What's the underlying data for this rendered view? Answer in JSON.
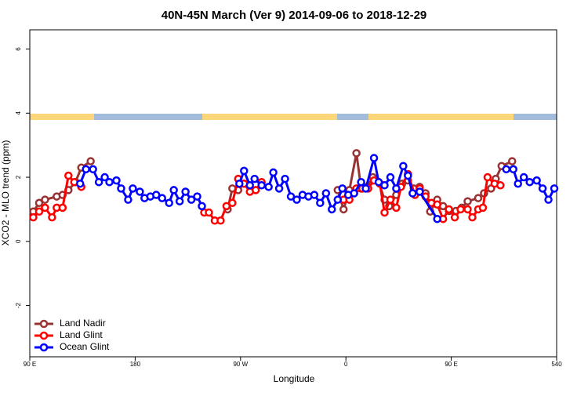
{
  "chart_data": {
    "type": "line",
    "title": "40N-45N March (Ver 9)   2014-09-06 to 2018-12-29",
    "x_label": "Longitude",
    "y_label": "XCO2 - MLO trend (ppm)",
    "xlim": [
      90,
      540
    ],
    "ylim": [
      -3.6,
      6.6
    ],
    "xticks": [
      {
        "value": 90,
        "label": "90 E"
      },
      180,
      {
        "value": 270,
        "label": "90 W"
      },
      {
        "value": 360,
        "label": "0"
      },
      {
        "value": 450,
        "label": "90 E"
      },
      540
    ],
    "yticks": [
      -2,
      0,
      2,
      4,
      6
    ],
    "legend": "bottom-left",
    "series": [
      {
        "name": "Land Nadir",
        "color": "#993333",
        "x": [
          93,
          98,
          103,
          113,
          118,
          123,
          129,
          134,
          142,
          null,
          259,
          263,
          268,
          273,
          null,
          353,
          358,
          363,
          369,
          373,
          378,
          383,
          388,
          393,
          397,
          403,
          408,
          413,
          418,
          423,
          428,
          432,
          438,
          443,
          448,
          454,
          459,
          464,
          473,
          478,
          484,
          488,
          493,
          502
        ],
        "values": [
          0.93,
          1.2,
          1.3,
          1.4,
          1.45,
          1.6,
          1.85,
          2.3,
          2.5,
          null,
          1.0,
          1.65,
          1.6,
          1.8,
          null,
          1.6,
          1.0,
          1.6,
          2.75,
          1.65,
          1.7,
          2.0,
          1.85,
          1.3,
          1.1,
          1.45,
          1.8,
          1.9,
          1.65,
          1.7,
          1.5,
          0.93,
          1.3,
          1.1,
          0.95,
          0.95,
          1.05,
          1.25,
          1.35,
          1.5,
          1.65,
          1.95,
          2.35,
          2.5
        ]
      },
      {
        "name": "Land Glint",
        "color": "#ff0000",
        "x": [
          93,
          98,
          103,
          109,
          113,
          118,
          123,
          128,
          134,
          null,
          239,
          243,
          248,
          253,
          258,
          263,
          268,
          273,
          278,
          283,
          288,
          null,
          358,
          363,
          369,
          374,
          379,
          384,
          389,
          393,
          398,
          403,
          407,
          413,
          419,
          423,
          428,
          433,
          438,
          443,
          448,
          453,
          458,
          464,
          468,
          473,
          477,
          481,
          487,
          492
        ],
        "values": [
          0.75,
          0.93,
          1.05,
          0.75,
          1.05,
          1.05,
          2.05,
          1.85,
          1.7,
          null,
          0.9,
          0.9,
          0.65,
          0.65,
          1.1,
          1.2,
          1.95,
          1.8,
          1.55,
          1.6,
          1.85,
          null,
          1.3,
          1.3,
          1.65,
          1.65,
          1.65,
          1.9,
          1.8,
          0.9,
          1.3,
          1.05,
          1.7,
          2.1,
          1.45,
          1.65,
          1.4,
          1.2,
          1.15,
          0.7,
          1.0,
          0.75,
          1.0,
          1.0,
          0.75,
          1.0,
          1.05,
          2.0,
          1.8,
          1.75
        ]
      },
      {
        "name": "Ocean Glint",
        "color": "#0000ff",
        "x": [
          133,
          138,
          144,
          149,
          154,
          158,
          164,
          168,
          174,
          178,
          184,
          188,
          193,
          198,
          203,
          209,
          213,
          218,
          223,
          228,
          233,
          237,
          null,
          269,
          273,
          278,
          282,
          288,
          294,
          298,
          303,
          308,
          313,
          318,
          323,
          328,
          333,
          338,
          343,
          348,
          353,
          357,
          362,
          367,
          373,
          377,
          384,
          388,
          393,
          398,
          403,
          409,
          413,
          417,
          423,
          438,
          null,
          497,
          503,
          507,
          512,
          517,
          523,
          528,
          533,
          538
        ],
        "values": [
          1.8,
          2.25,
          2.25,
          1.85,
          2.0,
          1.85,
          1.9,
          1.65,
          1.3,
          1.65,
          1.55,
          1.35,
          1.4,
          1.45,
          1.35,
          1.2,
          1.6,
          1.25,
          1.55,
          1.3,
          1.4,
          1.1,
          null,
          1.8,
          2.2,
          1.75,
          1.95,
          1.75,
          1.7,
          2.15,
          1.65,
          1.95,
          1.4,
          1.3,
          1.45,
          1.4,
          1.45,
          1.2,
          1.5,
          1.0,
          1.3,
          1.65,
          1.45,
          1.5,
          1.85,
          1.65,
          2.6,
          1.85,
          1.75,
          2.0,
          1.65,
          2.35,
          2.05,
          1.5,
          1.55,
          0.7,
          null,
          2.25,
          2.25,
          1.8,
          2.0,
          1.85,
          1.9,
          1.65,
          1.3,
          1.65
        ]
      }
    ]
  }
}
